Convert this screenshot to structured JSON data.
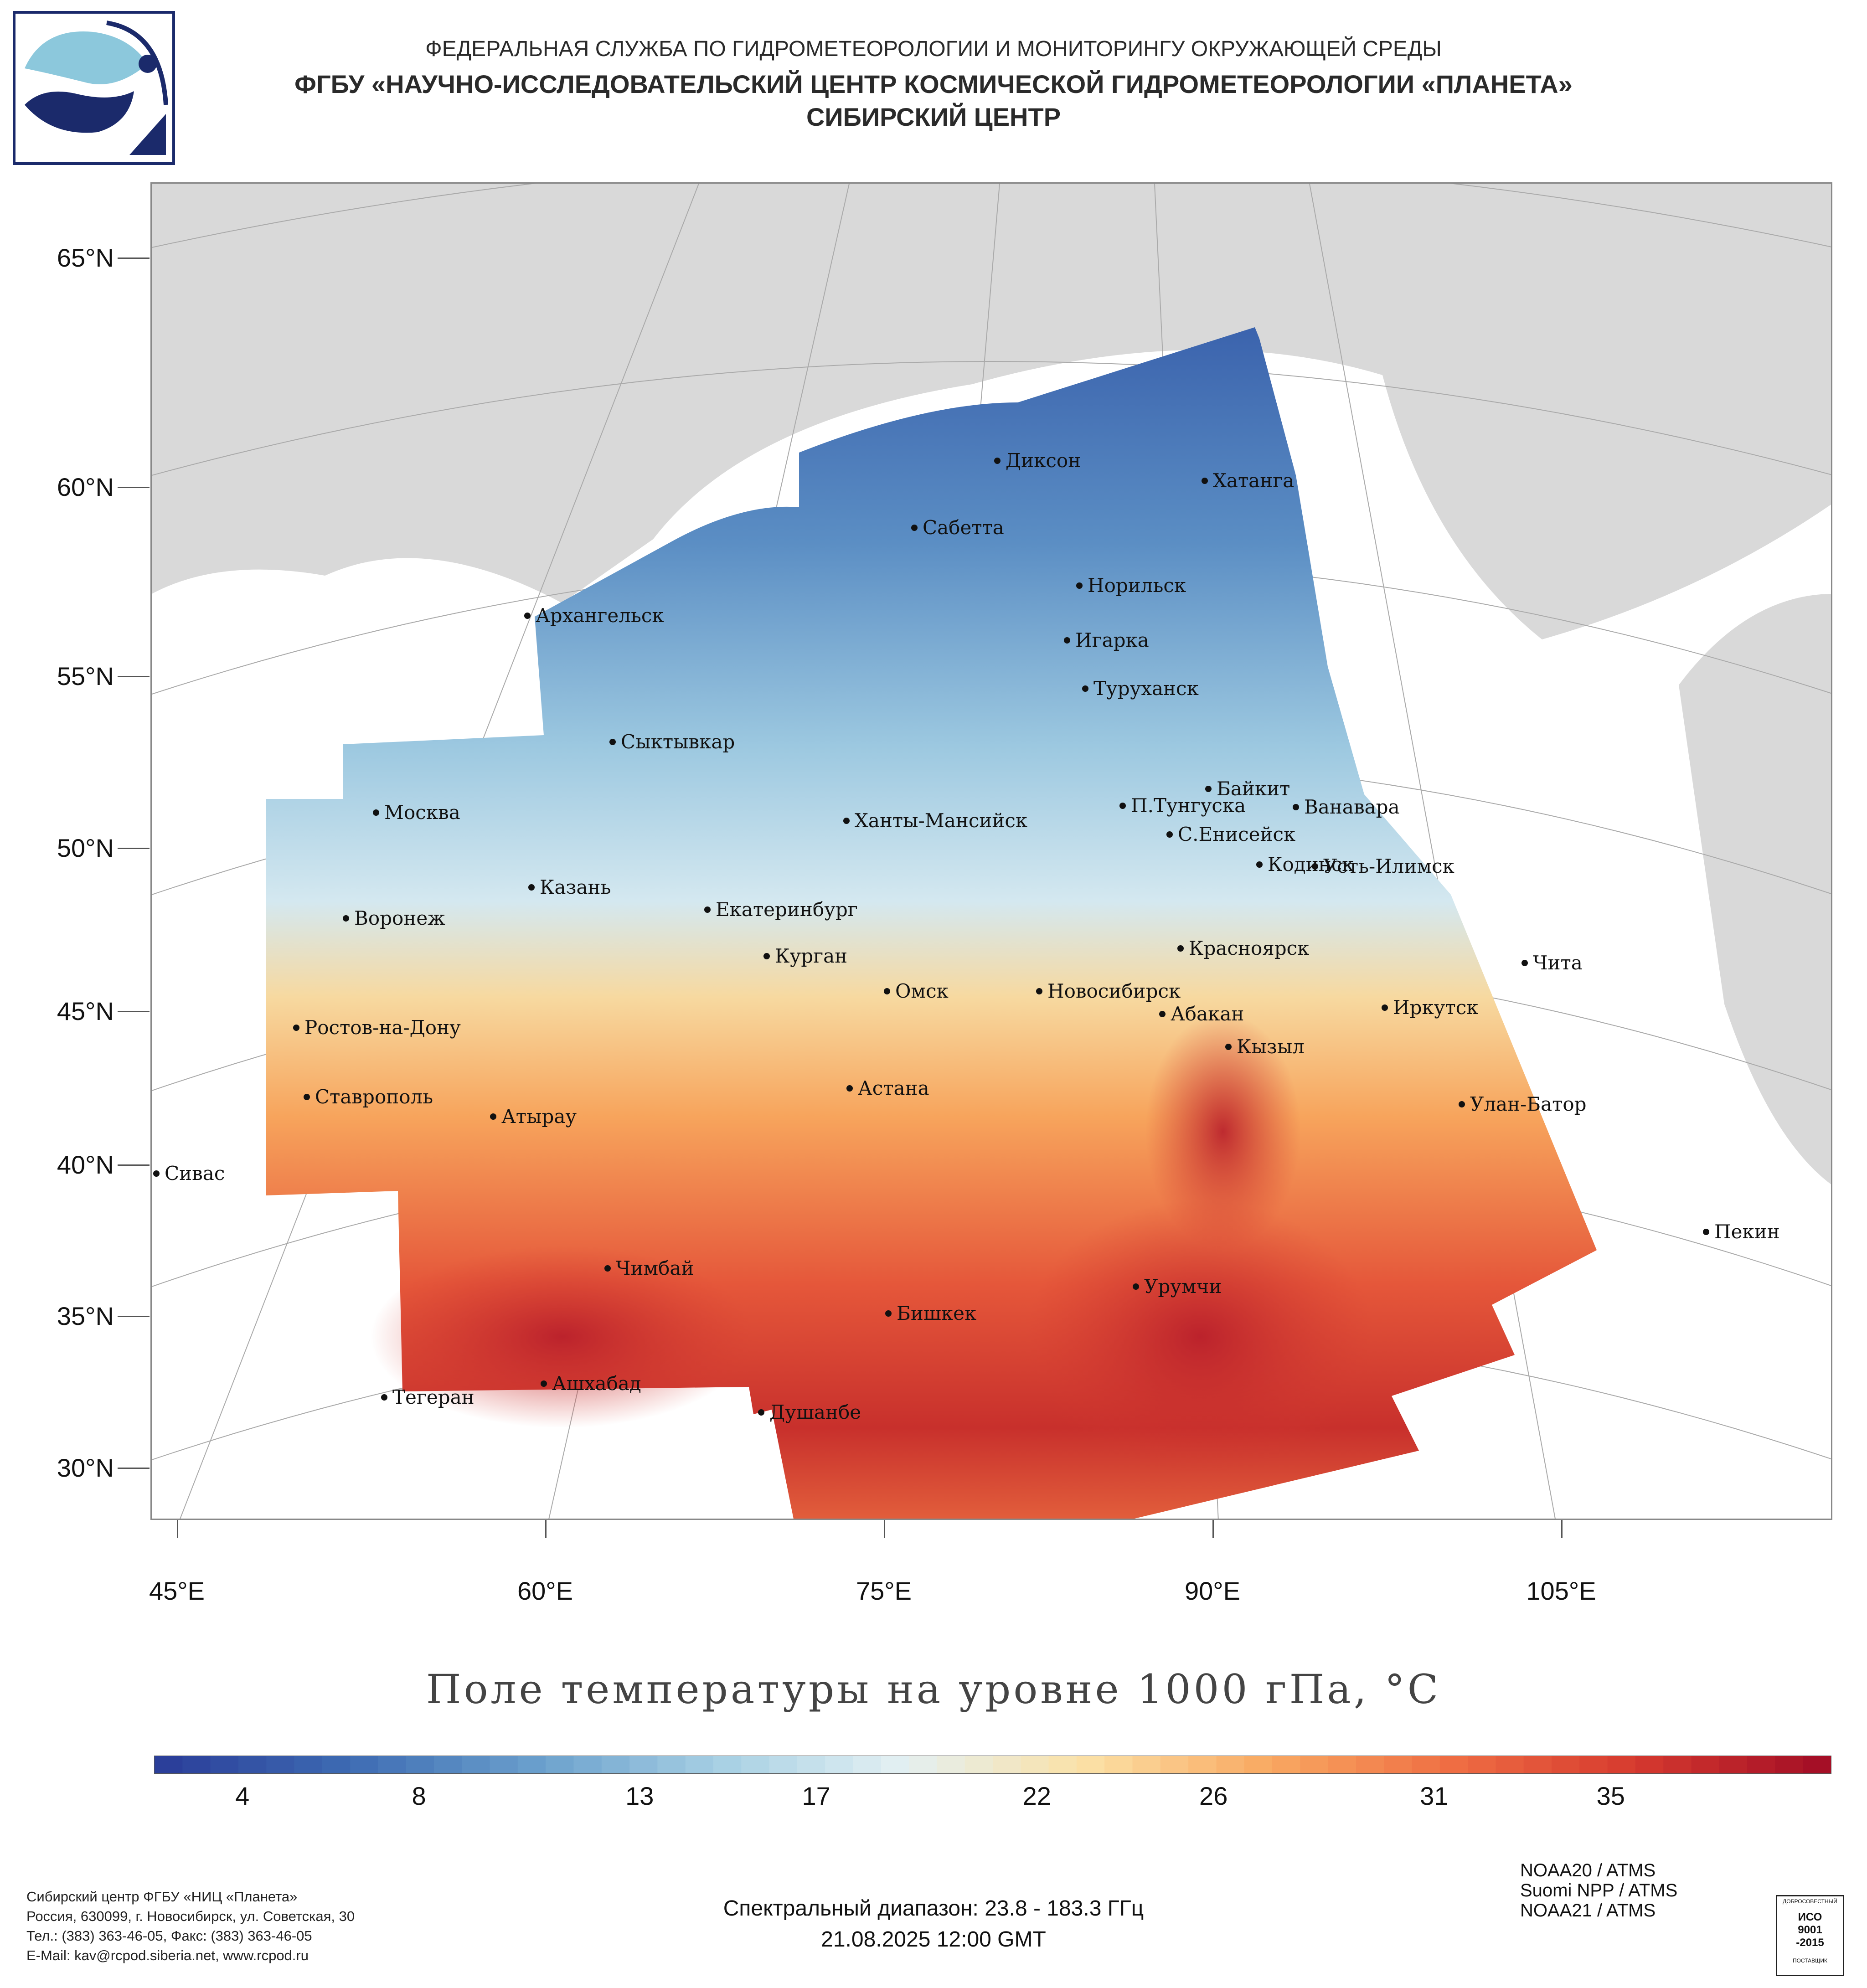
{
  "header": {
    "line1": "ФЕДЕРАЛЬНАЯ СЛУЖБА ПО ГИДРОМЕТЕОРОЛОГИИ И МОНИТОРИНГУ ОКРУЖАЮЩЕЙ СРЕДЫ",
    "line2": "ФГБУ «НАУЧНО-ИССЛЕДОВАТЕЛЬСКИЙ ЦЕНТР КОСМИЧЕСКОЙ ГИДРОМЕТЕОРОЛОГИИ «ПЛАНЕТА»",
    "line3": "СИБИРСКИЙ ЦЕНТР"
  },
  "map": {
    "lat_labels": [
      "65°N",
      "60°N",
      "55°N",
      "50°N",
      "45°N",
      "40°N",
      "35°N",
      "30°N"
    ],
    "lon_labels": [
      "45°E",
      "60°E",
      "75°E",
      "90°E",
      "105°E"
    ],
    "cities": [
      {
        "name": "Диксон"
      },
      {
        "name": "Хатанга"
      },
      {
        "name": "Сабетта"
      },
      {
        "name": "Норильск"
      },
      {
        "name": "Архангельск"
      },
      {
        "name": "Игарка"
      },
      {
        "name": "Туруханск"
      },
      {
        "name": "Сыктывкар"
      },
      {
        "name": "Байкит"
      },
      {
        "name": "П.Тунгуска"
      },
      {
        "name": "Ванавара"
      },
      {
        "name": "Москва"
      },
      {
        "name": "Ханты-Мансийск"
      },
      {
        "name": "С.Енисейск"
      },
      {
        "name": "Кодинск"
      },
      {
        "name": "Усть-Илимск"
      },
      {
        "name": "Казань"
      },
      {
        "name": "Екатеринбург"
      },
      {
        "name": "Воронеж"
      },
      {
        "name": "Красноярск"
      },
      {
        "name": "Курган"
      },
      {
        "name": "Чита"
      },
      {
        "name": "Омск"
      },
      {
        "name": "Новосибирск"
      },
      {
        "name": "Иркутск"
      },
      {
        "name": "Ростов-на-Дону"
      },
      {
        "name": "Абакан"
      },
      {
        "name": "Кызыл"
      },
      {
        "name": "Астана"
      },
      {
        "name": "Ставрополь"
      },
      {
        "name": "Улан-Батор"
      },
      {
        "name": "Атырау"
      },
      {
        "name": "Сивас"
      },
      {
        "name": "Пекин"
      },
      {
        "name": "Чимбай"
      },
      {
        "name": "Урумчи"
      },
      {
        "name": "Бишкек"
      },
      {
        "name": "Ашхабад"
      },
      {
        "name": "Тегеран"
      },
      {
        "name": "Душанбе"
      }
    ],
    "palette": {
      "cold": "#2b3f9a",
      "mid": "#e8f1f4",
      "warm": "#f7a45c",
      "hot": "#b3142a",
      "land": "#d9d9d9",
      "ocean": "#ffffff"
    }
  },
  "title": "Поле температуры на уровне 1000 гПа, °С",
  "colorbar": {
    "labels": [
      "4",
      "8",
      "13",
      "17",
      "22",
      "26",
      "31",
      "35"
    ],
    "min": 2,
    "max": 40
  },
  "footer": {
    "org_lines": [
      "Сибирский центр ФГБУ «НИЦ «Планета»",
      "Россия, 630099, г. Новосибирск, ул. Советская, 30",
      "Тел.: (383) 363-46-05, Факс: (383) 363-46-05",
      "E-Mail: kav@rcpod.siberia.net, www.rcpod.ru"
    ],
    "satellites": [
      "NOAA20 / ATMS",
      "Suomi NPP / ATMS",
      "NOAA21 / ATMS"
    ],
    "spectral": "Спектральный диапазон: 23.8 - 183.3 ГГц",
    "datetime": "21.08.2025 12:00 GMT",
    "iso": {
      "top": "ДОБРОСОВЕСТНЫЙ",
      "line1": "ИСО",
      "line2": "9001",
      "line3": "-2015",
      "bottom": "ПОСТАВЩИК"
    }
  }
}
